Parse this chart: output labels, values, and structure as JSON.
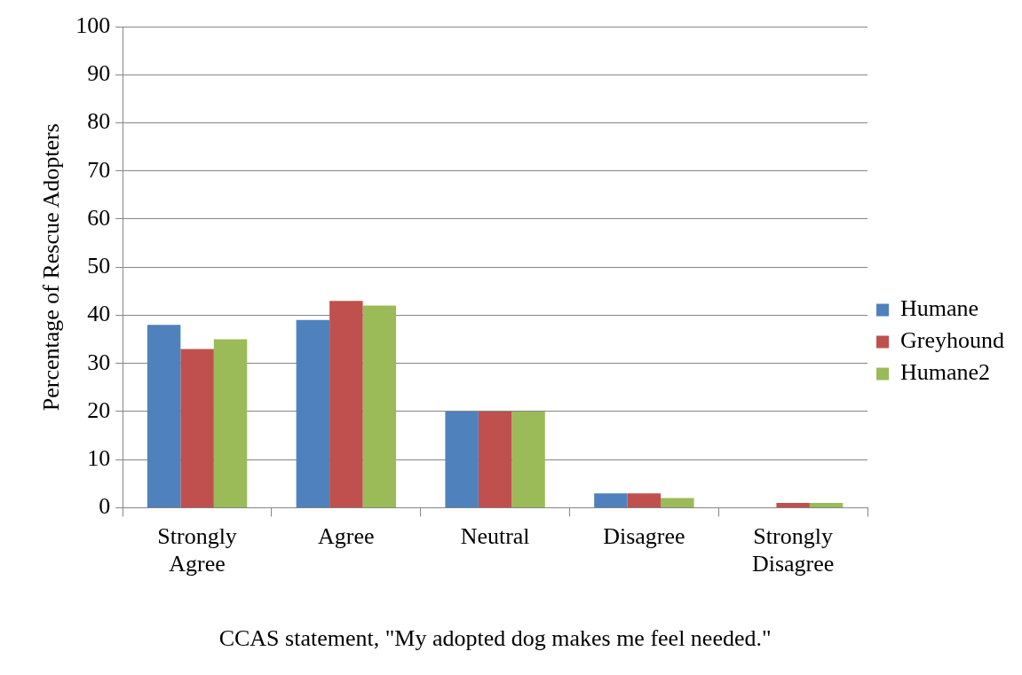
{
  "chart_data": {
    "type": "bar",
    "xlabel": "CCAS statement, \"My adopted dog makes me feel needed.\"",
    "ylabel": "Percentage of Rescue Adopters",
    "categories": [
      "Strongly Agree",
      "Agree",
      "Neutral",
      "Disagree",
      "Strongly Disagree"
    ],
    "series": [
      {
        "name": "Humane",
        "color": "#4f81bd",
        "values": [
          38,
          39,
          20,
          3,
          0
        ]
      },
      {
        "name": "Greyhound",
        "color": "#c0504d",
        "values": [
          33,
          43,
          20,
          3,
          1
        ]
      },
      {
        "name": "Humane2",
        "color": "#9bbb59",
        "values": [
          35,
          42,
          20,
          2,
          1
        ]
      }
    ],
    "ylim": [
      0,
      100
    ],
    "yticks": [
      0,
      10,
      20,
      30,
      40,
      50,
      60,
      70,
      80,
      90,
      100
    ],
    "grid": "y",
    "legend": "right"
  }
}
